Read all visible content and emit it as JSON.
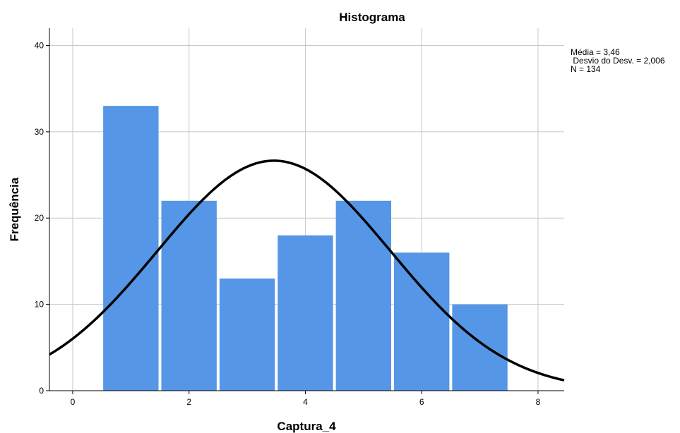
{
  "chart_data": {
    "type": "bar",
    "title": "Histograma",
    "xlabel": "Captura_4",
    "ylabel": "Frequência",
    "xlim": [
      -0.4,
      8.45
    ],
    "ylim": [
      0,
      42
    ],
    "xticks": [
      "0",
      "2",
      "4",
      "6",
      "8"
    ],
    "yticks": [
      "0",
      "10",
      "20",
      "30",
      "40"
    ],
    "grid": true,
    "bins": [
      {
        "from": 0.5,
        "to": 1.5,
        "value": 33
      },
      {
        "from": 1.5,
        "to": 2.5,
        "value": 22
      },
      {
        "from": 2.5,
        "to": 3.5,
        "value": 13
      },
      {
        "from": 3.5,
        "to": 4.5,
        "value": 18
      },
      {
        "from": 4.5,
        "to": 5.5,
        "value": 22
      },
      {
        "from": 5.5,
        "to": 6.5,
        "value": 16
      },
      {
        "from": 6.5,
        "to": 7.5,
        "value": 10
      }
    ],
    "normal_curve": {
      "mean": 3.46,
      "std": 2.006,
      "n": 134,
      "bin_width": 1
    },
    "stats": [
      "Média = 3,46",
      " Desvio do Desv. = 2,006",
      "N = 134"
    ],
    "legend_position": "top-right",
    "colors": {
      "bar": "#5596e6",
      "curve": "#000000",
      "grid": "#c8c8c8",
      "axis": "#000000"
    }
  }
}
